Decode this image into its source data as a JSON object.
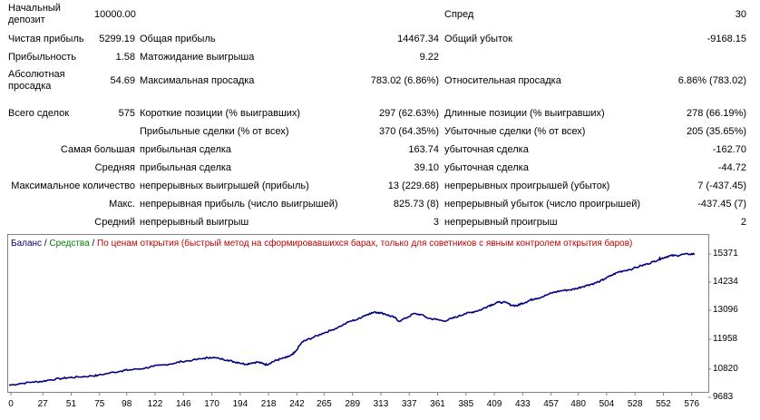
{
  "report": {
    "initial_deposit_label": [
      "Начальный",
      "депозит"
    ],
    "initial_deposit_value": "10000.00",
    "spread_label": "Спред",
    "spread_value": "30",
    "net_profit_label": "Чистая прибыль",
    "net_profit_value": "5299.19",
    "gross_profit_label": "Общая прибыль",
    "gross_profit_value": "14467.34",
    "gross_loss_label": "Общий убыток",
    "gross_loss_value": "-9168.15",
    "profit_factor_label": "Прибыльность",
    "profit_factor_value": "1.58",
    "expected_payoff_label": "Матожидание выигрыша",
    "expected_payoff_value": "9.22",
    "abs_drawdown_label": [
      "Абсолютная",
      "просадка"
    ],
    "abs_drawdown_value": "54.69",
    "max_drawdown_label": "Максимальная просадка",
    "max_drawdown_value": "783.02 (6.86%)",
    "rel_drawdown_label": "Относительная просадка",
    "rel_drawdown_value": "6.86% (783.02)",
    "total_trades_label": "Всего сделок",
    "total_trades_value": "575",
    "short_label": "Короткие позиции (% выигравших)",
    "short_value": "297 (62.63%)",
    "long_label": "Длинные позиции (% выигравших)",
    "long_value": "278 (66.19%)",
    "profit_trades_label": "Прибыльные сделки (% от всех)",
    "profit_trades_value": "370 (64.35%)",
    "loss_trades_label": "Убыточные сделки (% от всех)",
    "loss_trades_value": "205 (35.65%)",
    "largest_label": "Самая большая",
    "largest_profit_label": "прибыльная сделка",
    "largest_profit_value": "163.74",
    "largest_loss_label": "убыточная сделка",
    "largest_loss_value": "-162.70",
    "average_label": "Средняя",
    "average_profit_label": "прибыльная сделка",
    "average_profit_value": "39.10",
    "average_loss_label": "убыточная сделка",
    "average_loss_value": "-44.72",
    "max_count_label": "Максимальное количество",
    "max_cons_wins_label": "непрерывных выигрышей (прибыль)",
    "max_cons_wins_value": "13 (229.68)",
    "max_cons_losses_label": "непрерывных проигрышей (убыток)",
    "max_cons_losses_value": "7 (-437.45)",
    "max_label": "Макс.",
    "max_cons_profit_label": "непрерывная прибыль (число выигрышей)",
    "max_cons_profit_value": "825.73 (8)",
    "max_cons_loss_label": "непрерывный убыток (число проигрышей)",
    "max_cons_loss_value": "-437.45 (7)",
    "avg_label": "Средний",
    "avg_cons_wins_label": "непрерывный выигрыш",
    "avg_cons_wins_value": "3",
    "avg_cons_losses_label": "непрерывный проигрыш",
    "avg_cons_losses_value": "2"
  },
  "legend": {
    "balance": "Баланс",
    "sep1": " / ",
    "equity": "Средства",
    "sep2": " / ",
    "text": "По ценам открытия (быстрый метод на сформировавшихся барах, только для советников с явным контролем открытия баров)"
  },
  "colors": {
    "balance_line": "#000080",
    "equity_legend": "#008000",
    "mode_legend": "#c00000"
  },
  "chart_data": {
    "type": "line",
    "x_ticks": [
      "0",
      "27",
      "51",
      "75",
      "98",
      "122",
      "146",
      "170",
      "194",
      "218",
      "242",
      "265",
      "289",
      "313",
      "337",
      "361",
      "385",
      "409",
      "433",
      "457",
      "480",
      "504",
      "528",
      "552",
      "576"
    ],
    "y_ticks": [
      "15371",
      "14234",
      "13096",
      "11958",
      "10820",
      "9683"
    ],
    "ylim": [
      9683,
      15371
    ],
    "xlim": [
      0,
      590
    ],
    "series": [
      {
        "values_x": [
          0,
          10,
          20,
          27,
          35,
          45,
          51,
          60,
          70,
          75,
          85,
          95,
          98,
          105,
          115,
          122,
          130,
          140,
          146,
          155,
          165,
          170,
          178,
          185,
          190,
          194,
          200,
          205,
          210,
          215,
          218,
          222,
          226,
          230,
          235,
          240,
          242,
          248,
          252,
          258,
          265,
          272,
          280,
          289,
          295,
          300,
          305,
          310,
          313,
          318,
          322,
          326,
          330,
          337,
          342,
          348,
          355,
          361,
          368,
          375,
          380,
          385,
          390,
          395,
          400,
          405,
          409,
          414,
          420,
          425,
          430,
          433,
          437,
          441,
          445,
          450,
          457,
          462,
          468,
          475,
          480,
          485,
          490,
          495,
          500,
          504,
          510,
          515,
          520,
          528,
          535,
          540,
          545,
          550,
          552,
          556,
          560,
          565,
          570,
          576,
          580
        ],
        "values_y": [
          9920,
          9990,
          10050,
          10070,
          10140,
          10200,
          10230,
          10260,
          10300,
          10320,
          10420,
          10500,
          10530,
          10560,
          10620,
          10690,
          10750,
          10820,
          10890,
          10940,
          11020,
          11060,
          11010,
          10950,
          10880,
          10850,
          10780,
          10830,
          10870,
          10800,
          10760,
          10860,
          10940,
          11000,
          11060,
          11180,
          11280,
          11690,
          11780,
          11890,
          12040,
          12160,
          12330,
          12550,
          12620,
          12760,
          12860,
          12910,
          12900,
          12840,
          12760,
          12700,
          12540,
          12700,
          12850,
          12820,
          12660,
          12620,
          12550,
          12660,
          12740,
          12840,
          12900,
          12950,
          13030,
          13160,
          13230,
          13320,
          13310,
          13200,
          13180,
          13260,
          13320,
          13410,
          13470,
          13520,
          13660,
          13740,
          13800,
          13830,
          13880,
          13960,
          14030,
          14090,
          14180,
          14280,
          14430,
          14550,
          14610,
          14700,
          14820,
          14890,
          14980,
          15080,
          15120,
          15180,
          15230,
          15230,
          15280,
          15290,
          15300
        ]
      }
    ]
  }
}
